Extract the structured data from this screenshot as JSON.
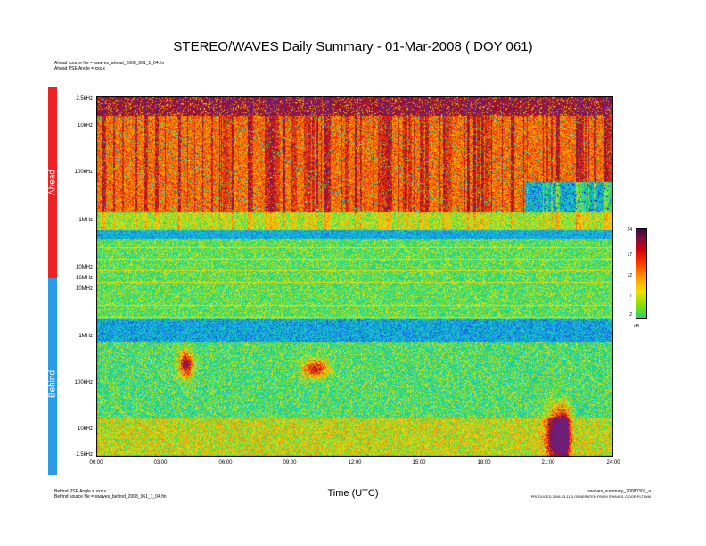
{
  "header": {
    "title": "STEREO/WAVES Daily Summary - 01-Mar-2008 ( DOY 061)",
    "ahead_source": "Ahead source file = swaves_ahead_2008_061_1_04.fin",
    "ahead_pse": "Ahead PSE Angle = xxx.x"
  },
  "footer": {
    "behind_pse": "Behind PSE Angle = xxx.x",
    "behind_source": "Behind source file = swaves_behind_2008_061_1_04.fin",
    "summary_file": "swaves_summary_20080301_a",
    "produced": "PRODUCED 2008-03-11 3 GENERATED FROM SWAVES CIOGR.PLT WM"
  },
  "chart_data": {
    "type": "heatmap",
    "title": "STEREO/WAVES Daily Summary - 01-Mar-2008 ( DOY 061)",
    "xlabel": "Time (UTC)",
    "x_ticks": [
      "00:00",
      "03:00",
      "06:00",
      "09:00",
      "12:00",
      "15:00",
      "18:00",
      "21:00",
      "24:00"
    ],
    "panels": [
      {
        "name": "Ahead",
        "color": "#ee2222",
        "y_ticks": [
          "2.5kHz",
          "10kHz",
          "100kHz",
          "1MHz",
          "10MHz",
          "16MHz"
        ]
      },
      {
        "name": "Behind",
        "color": "#2a9be8",
        "y_ticks": [
          "10MHz",
          "1MHz",
          "100kHz",
          "10kHz",
          "2.5kHz"
        ]
      }
    ],
    "colorbar": {
      "label": "dB",
      "ticks": [
        "24",
        "17",
        "12",
        "7",
        "2"
      ],
      "range": [
        2,
        24
      ]
    }
  }
}
